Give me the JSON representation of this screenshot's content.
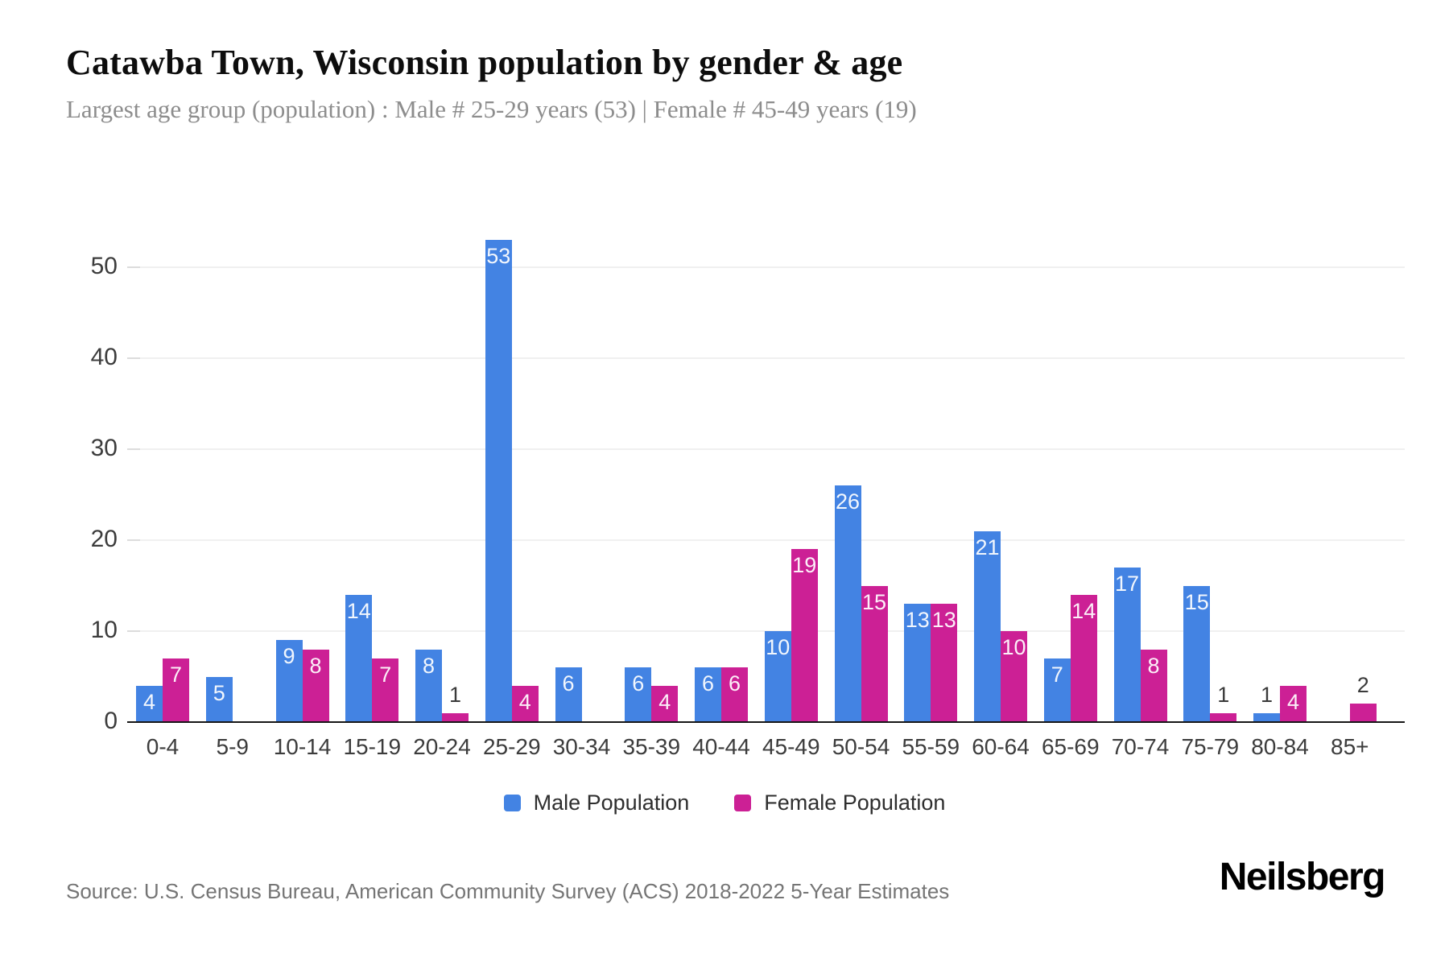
{
  "header": {
    "title": "Catawba Town, Wisconsin population by gender & age",
    "subtitle": "Largest age group (population) : Male # 25-29 years (53) | Female # 45-49 years (19)"
  },
  "legend": {
    "male_label": "Male Population",
    "female_label": "Female Population"
  },
  "footer": {
    "source": "Source: U.S. Census Bureau, American Community Survey (ACS) 2018-2022 5-Year Estimates",
    "logo": "Neilsberg"
  },
  "colors": {
    "male": "#4383e3",
    "female": "#cc2095",
    "gridline": "#f0f0f0",
    "baseline": "#161616"
  },
  "chart_data": {
    "type": "bar",
    "title": "Catawba Town, Wisconsin population by gender & age",
    "xlabel": "",
    "ylabel": "",
    "categories": [
      "0-4",
      "5-9",
      "10-14",
      "15-19",
      "20-24",
      "25-29",
      "30-34",
      "35-39",
      "40-44",
      "45-49",
      "50-54",
      "55-59",
      "60-64",
      "65-69",
      "70-74",
      "75-79",
      "80-84",
      "85+"
    ],
    "series": [
      {
        "name": "Male Population",
        "color": "#4383e3",
        "values": [
          4,
          5,
          9,
          14,
          8,
          53,
          6,
          6,
          6,
          10,
          26,
          13,
          21,
          7,
          17,
          15,
          1,
          0
        ]
      },
      {
        "name": "Female Population",
        "color": "#cc2095",
        "values": [
          7,
          0,
          8,
          7,
          1,
          4,
          0,
          4,
          6,
          19,
          15,
          13,
          10,
          14,
          8,
          1,
          4,
          2
        ]
      }
    ],
    "ylim": [
      0,
      53
    ],
    "yticks": [
      0,
      10,
      20,
      30,
      40,
      50
    ],
    "grid": true,
    "legend_position": "bottom"
  }
}
